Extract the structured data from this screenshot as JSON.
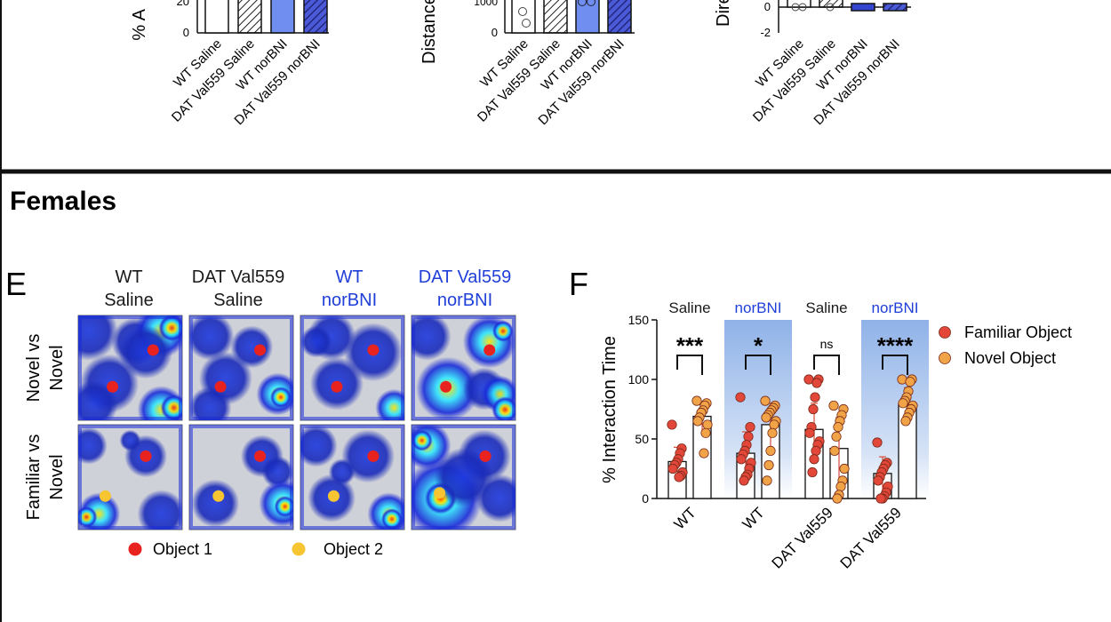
{
  "top_panels": {
    "group_labels": [
      "WT Saline",
      "DAT Val559 Saline",
      "WT norBNI",
      "DAT Val559 norBNI"
    ],
    "panel1": {
      "ylabel_fragment": "% A",
      "ticks": [
        "20",
        "0"
      ]
    },
    "panel2": {
      "ylabel_fragment": "Distance",
      "ticks": [
        "1000",
        "0"
      ]
    },
    "panel3": {
      "ylabel_fragment": "Dire",
      "ticks": [
        "0",
        "-2"
      ]
    }
  },
  "section_title": "Females",
  "panel_e": {
    "letter": "E",
    "columns": [
      {
        "line1": "WT",
        "line2": "Saline",
        "color": "#1a1a1a"
      },
      {
        "line1": "DAT Val559",
        "line2": "Saline",
        "color": "#1a1a1a"
      },
      {
        "line1": "WT",
        "line2": "norBNI",
        "color": "#1f3fd8"
      },
      {
        "line1": "DAT Val559",
        "line2": "norBNI",
        "color": "#1f3fd8"
      }
    ],
    "rows": [
      {
        "line1": "Novel vs",
        "line2": "Novel"
      },
      {
        "line1": "Familiar vs",
        "line2": "Novel"
      }
    ],
    "legend": [
      {
        "label": "Object 1",
        "color": "#e8231f"
      },
      {
        "label": "Object 2",
        "color": "#f6c531"
      }
    ]
  },
  "chart_data": {
    "type": "bar",
    "panel_letter": "F",
    "ylabel": "% Interaction  Time",
    "ylim": [
      0,
      150
    ],
    "yticks": [
      "0",
      "50",
      "100",
      "150"
    ],
    "categories": [
      "WT",
      "WT",
      "DAT Val559",
      "DAT Val559"
    ],
    "treatments": [
      {
        "label": "Saline",
        "color": "#1a1a1a",
        "shaded": false
      },
      {
        "label": "norBNI",
        "color": "#1f3fd8",
        "shaded": true
      },
      {
        "label": "Saline",
        "color": "#1a1a1a",
        "shaded": false
      },
      {
        "label": "norBNI",
        "color": "#1f3fd8",
        "shaded": true
      }
    ],
    "significance": [
      "***",
      "*",
      "ns",
      "****"
    ],
    "series": [
      {
        "name": "Familiar Object",
        "color": "#e2473a",
        "values": [
          31,
          38,
          58,
          21
        ],
        "points": [
          [
            62,
            42,
            38,
            33,
            30,
            28,
            25,
            22,
            19,
            18
          ],
          [
            85,
            60,
            52,
            45,
            40,
            37,
            33,
            30,
            25,
            20,
            18,
            15
          ],
          [
            100,
            100,
            97,
            85,
            75,
            60,
            55,
            48,
            45,
            40,
            33,
            22
          ],
          [
            47,
            30,
            28,
            25,
            22,
            18,
            15,
            10,
            5,
            2,
            0,
            0
          ]
        ],
        "sd": [
          12,
          18,
          22,
          14
        ]
      },
      {
        "name": "Novel Object",
        "color": "#f0a447",
        "values": [
          69,
          62,
          42,
          79
        ],
        "points": [
          [
            82,
            80,
            78,
            74,
            72,
            68,
            65,
            62,
            55,
            38
          ],
          [
            82,
            78,
            76,
            74,
            72,
            70,
            68,
            65,
            62,
            55,
            40,
            28,
            15
          ],
          [
            78,
            75,
            70,
            65,
            60,
            52,
            40,
            25,
            15,
            10,
            3,
            0
          ],
          [
            100,
            100,
            98,
            90,
            85,
            82,
            80,
            78,
            75,
            72,
            68,
            65
          ]
        ],
        "sd": [
          12,
          18,
          26,
          14
        ]
      }
    ],
    "legend": [
      "Familiar Object",
      "Novel Object"
    ]
  }
}
